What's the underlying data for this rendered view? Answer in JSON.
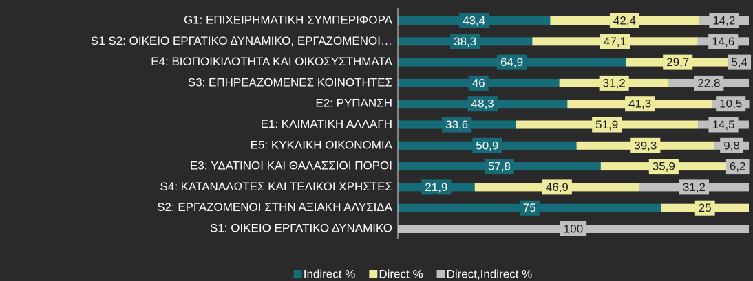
{
  "chart_data": {
    "type": "stacked-bar-horizontal",
    "categories": [
      "G1: ΕΠΙΧΕΙΡΗΜΑΤΙΚΗ ΣΥΜΠΕΡΙΦΟΡΑ",
      "S1 S2: ΟΙΚΕΙΟ ΕΡΓΑΤΙΚΟ ΔΥΝΑΜΙΚΟ, ΕΡΓΑΖΟΜΕΝΟΙ…",
      "E4: ΒΙΟΠΟΙΚΙΛΟΤΗΤΑ ΚΑΙ ΟΙΚΟΣΥΣΤΗΜΑΤΑ",
      "S3: ΕΠΗΡΕΑΖΟΜΕΝΕΣ ΚΟΙΝΟΤΗΤΕΣ",
      "E2: ΡΥΠΑΝΣΗ",
      "E1: ΚΛΙΜΑΤΙΚΗ ΑΛΛΑΓΗ",
      "E5: ΚΥΚΛΙΚΗ ΟΙΚΟΝΟΜΙΑ",
      "E3: ΥΔΑΤΙΝΟΙ ΚΑΙ ΘΑΛΑΣΣΙΟΙ ΠΟΡΟΙ",
      "S4: ΚΑΤΑΝΑΛΩΤΕΣ ΚΑΙ ΤΕΛΙΚΟΙ ΧΡΗΣΤΕΣ",
      "S2: ΕΡΓΑΖΟΜΕΝΟΙ ΣΤΗΝ ΑΞΙΑΚΗ ΑΛΥΣΙΔΑ",
      "S1: ΟΙΚΕΙΟ ΕΡΓΑΤΙΚΟ ΔΥΝΑΜΙΚΟ"
    ],
    "series": [
      {
        "name": "Indirect %",
        "color": "#166d79",
        "text_color": "#ffffff",
        "values": [
          43.4,
          38.3,
          64.9,
          46,
          48.3,
          33.6,
          50.9,
          57.8,
          21.9,
          75,
          null
        ],
        "value_labels": [
          "43,4",
          "38,3",
          "64,9",
          "46",
          "48,3",
          "33,6",
          "50,9",
          "57,8",
          "21,9",
          "75",
          null
        ]
      },
      {
        "name": "Direct %",
        "color": "#eeec9c",
        "text_color": "#1a1a1a",
        "values": [
          42.4,
          47.1,
          29.7,
          31.2,
          41.3,
          51.9,
          39.3,
          35.9,
          46.9,
          25,
          null
        ],
        "value_labels": [
          "42,4",
          "47,1",
          "29,7",
          "31,2",
          "41,3",
          "51,9",
          "39,3",
          "35,9",
          "46,9",
          "25",
          null
        ]
      },
      {
        "name": "Direct,Indirect %",
        "color": "#bfbfbf",
        "text_color": "#1a1a1a",
        "values": [
          14.2,
          14.6,
          5.4,
          22.8,
          10.5,
          14.5,
          9.8,
          6.2,
          31.2,
          null,
          100
        ],
        "value_labels": [
          "14,2",
          "14,6",
          "5,4",
          "22,8",
          "10,5",
          "14,5",
          "9,8",
          "6,2",
          "31,2",
          null,
          "100"
        ]
      }
    ],
    "xlim": [
      0,
      100
    ],
    "legend": "bottom"
  }
}
